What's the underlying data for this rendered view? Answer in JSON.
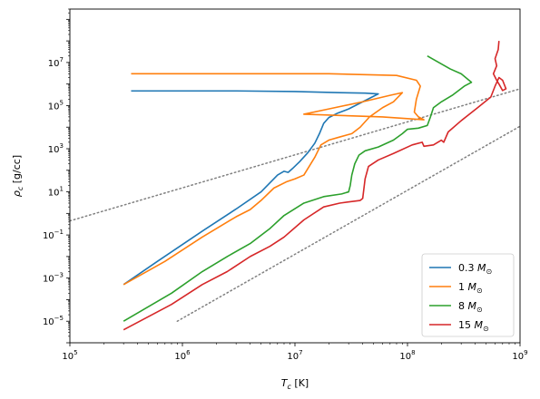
{
  "chart_data": {
    "type": "line",
    "xscale": "log",
    "yscale": "log",
    "xlim": [
      100000,
      1000000000
    ],
    "ylim": [
      1e-06,
      3000000000
    ],
    "x_ticks": [
      {
        "value": 100000,
        "base": "10",
        "exp": "5"
      },
      {
        "value": 1000000,
        "base": "10",
        "exp": "6"
      },
      {
        "value": 10000000,
        "base": "10",
        "exp": "7"
      },
      {
        "value": 100000000,
        "base": "10",
        "exp": "8"
      },
      {
        "value": 1000000000,
        "base": "10",
        "exp": "9"
      }
    ],
    "y_ticks": [
      {
        "value": 1e-05,
        "base": "10",
        "exp": "−5"
      },
      {
        "value": 0.001,
        "base": "10",
        "exp": "−3"
      },
      {
        "value": 0.1,
        "base": "10",
        "exp": "−1"
      },
      {
        "value": 10,
        "base": "10",
        "exp": "1"
      },
      {
        "value": 1000,
        "base": "10",
        "exp": "3"
      },
      {
        "value": 100000,
        "base": "10",
        "exp": "5"
      },
      {
        "value": 10000000,
        "base": "10",
        "exp": "7"
      }
    ],
    "xlabel": {
      "main": "T",
      "sub": "c",
      "unit": " [K]"
    },
    "ylabel": {
      "main": "ρ",
      "sub": "c",
      "unit": " [g/cc]"
    },
    "grid": false,
    "legend_position": "lower-right",
    "series": [
      {
        "name": "0.3 M",
        "name_sub": "⊙",
        "color": "#1f77b4",
        "points": [
          [
            300000,
            0.0005
          ],
          [
            600000,
            0.006
          ],
          [
            1500000,
            0.15
          ],
          [
            3000000,
            1.6
          ],
          [
            5000000,
            10
          ],
          [
            7000000,
            60
          ],
          [
            8000000,
            90
          ],
          [
            8700000,
            80
          ],
          [
            9500000,
            120
          ],
          [
            11000000,
            250
          ],
          [
            13000000,
            650
          ],
          [
            15000000,
            1800
          ],
          [
            16500000,
            5000
          ],
          [
            18000000,
            15000
          ],
          [
            20000000,
            28000
          ],
          [
            24000000,
            45000
          ],
          [
            30000000,
            70000
          ],
          [
            40000000,
            150000
          ],
          [
            55000000,
            350000
          ],
          [
            42000000,
            380000
          ],
          [
            25000000,
            400000
          ],
          [
            10000000,
            450000
          ],
          [
            3000000,
            480000
          ],
          [
            350000,
            480000
          ]
        ]
      },
      {
        "name": "1 M",
        "name_sub": "⊙",
        "color": "#ff7f0e",
        "points": [
          [
            300000,
            0.0005
          ],
          [
            700000,
            0.006
          ],
          [
            1500000,
            0.08
          ],
          [
            3000000,
            0.7
          ],
          [
            4000000,
            1.5
          ],
          [
            5000000,
            4
          ],
          [
            6500000,
            15
          ],
          [
            8500000,
            30
          ],
          [
            10000000,
            40
          ],
          [
            12000000,
            60
          ],
          [
            15000000,
            400
          ],
          [
            17000000,
            1500
          ],
          [
            20000000,
            2500
          ],
          [
            25000000,
            3500
          ],
          [
            32000000,
            5000
          ],
          [
            38000000,
            10000
          ],
          [
            46000000,
            30000
          ],
          [
            60000000,
            80000
          ],
          [
            75000000,
            150000
          ],
          [
            90000000,
            400000
          ],
          [
            70000000,
            300000
          ],
          [
            40000000,
            150000
          ],
          [
            20000000,
            70000
          ],
          [
            12000000,
            40000
          ],
          [
            25000000,
            35000
          ],
          [
            60000000,
            30000
          ],
          [
            100000000,
            25000
          ],
          [
            140000000,
            22000
          ],
          [
            125000000,
            30000
          ],
          [
            115000000,
            50000
          ],
          [
            120000000,
            200000
          ],
          [
            130000000,
            800000
          ],
          [
            120000000,
            1500000
          ],
          [
            80000000,
            2500000
          ],
          [
            20000000,
            3000000
          ],
          [
            5000000,
            3000000
          ],
          [
            350000,
            3000000
          ]
        ]
      },
      {
        "name": "8 M",
        "name_sub": "⊙",
        "color": "#2ca02c",
        "points": [
          [
            300000,
            1e-05
          ],
          [
            800000,
            0.0002
          ],
          [
            1500000,
            0.002
          ],
          [
            2500000,
            0.01
          ],
          [
            4000000,
            0.04
          ],
          [
            6000000,
            0.2
          ],
          [
            8000000,
            0.8
          ],
          [
            12000000,
            3
          ],
          [
            18000000,
            6
          ],
          [
            26000000,
            8
          ],
          [
            30000000,
            10
          ],
          [
            31000000,
            20
          ],
          [
            32000000,
            60
          ],
          [
            34000000,
            200
          ],
          [
            37000000,
            500
          ],
          [
            42000000,
            800
          ],
          [
            55000000,
            1200
          ],
          [
            75000000,
            2500
          ],
          [
            90000000,
            5000
          ],
          [
            100000000,
            8000
          ],
          [
            125000000,
            9000
          ],
          [
            150000000,
            12000
          ],
          [
            160000000,
            30000
          ],
          [
            170000000,
            80000
          ],
          [
            200000000,
            150000
          ],
          [
            250000000,
            300000
          ],
          [
            320000000,
            800000
          ],
          [
            370000000,
            1200000
          ],
          [
            300000000,
            3000000
          ],
          [
            240000000,
            5000000
          ],
          [
            190000000,
            10000000
          ],
          [
            150000000,
            20000000
          ]
        ]
      },
      {
        "name": "15 M",
        "name_sub": "⊙",
        "color": "#d62728",
        "points": [
          [
            300000,
            4e-06
          ],
          [
            800000,
            6e-05
          ],
          [
            1500000,
            0.0005
          ],
          [
            2500000,
            0.002
          ],
          [
            4000000,
            0.01
          ],
          [
            6000000,
            0.03
          ],
          [
            8000000,
            0.08
          ],
          [
            12000000,
            0.5
          ],
          [
            18000000,
            2
          ],
          [
            25000000,
            3
          ],
          [
            38000000,
            4
          ],
          [
            40000000,
            5
          ],
          [
            42000000,
            40
          ],
          [
            45000000,
            150
          ],
          [
            55000000,
            300
          ],
          [
            75000000,
            600
          ],
          [
            110000000,
            1500
          ],
          [
            135000000,
            2000
          ],
          [
            140000000,
            1300
          ],
          [
            170000000,
            1500
          ],
          [
            200000000,
            2500
          ],
          [
            210000000,
            2000
          ],
          [
            230000000,
            6000
          ],
          [
            300000000,
            20000
          ],
          [
            420000000,
            80000
          ],
          [
            550000000,
            250000
          ],
          [
            600000000,
            800000
          ],
          [
            650000000,
            2000000
          ],
          [
            700000000,
            1500000
          ],
          [
            750000000,
            600000
          ],
          [
            700000000,
            500000
          ],
          [
            650000000,
            1000000
          ],
          [
            620000000,
            1500000
          ],
          [
            580000000,
            3000000
          ],
          [
            620000000,
            7000000
          ],
          [
            600000000,
            15000000
          ],
          [
            640000000,
            40000000
          ],
          [
            650000000,
            100000000
          ]
        ]
      }
    ],
    "reference_lines": [
      {
        "style": "dotted",
        "color": "#808080",
        "points": [
          [
            100000,
            0.45
          ],
          [
            1000000000,
            600000
          ]
        ]
      },
      {
        "style": "dotted",
        "color": "#808080",
        "points": [
          [
            900000,
            1e-05
          ],
          [
            1000000000,
            11000
          ]
        ]
      }
    ]
  }
}
